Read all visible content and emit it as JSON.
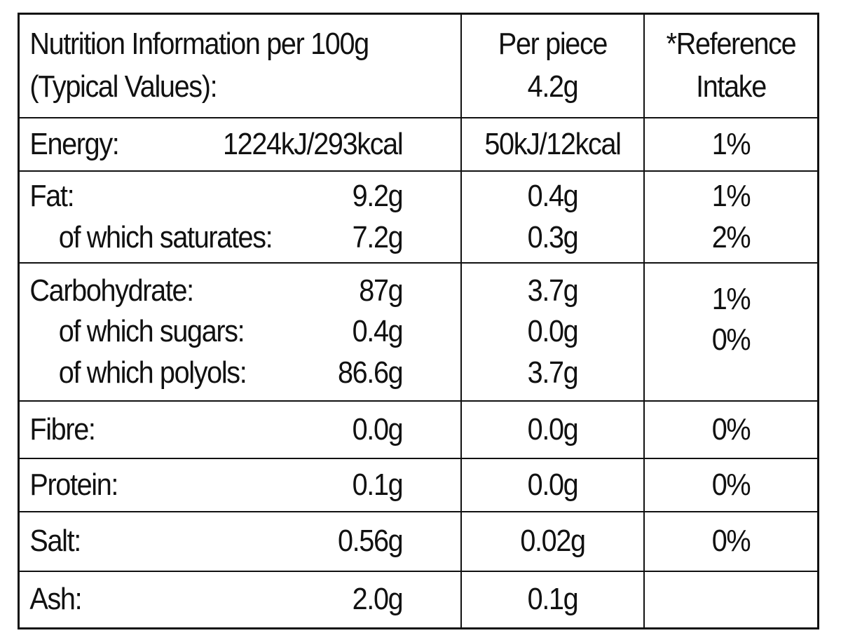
{
  "header": {
    "left_line1": "Nutrition Information per 100g",
    "left_line2": "(Typical Values):",
    "per_piece_line1": "Per piece",
    "per_piece_line2": "4.2g",
    "ri_line1": "*Reference",
    "ri_line2": "Intake"
  },
  "rows": {
    "energy": {
      "label": "Energy:",
      "per100": "1224kJ/293kcal",
      "piece": "50kJ/12kcal",
      "ri": "1%"
    },
    "fat": {
      "label": "Fat:",
      "per100": "9.2g",
      "piece": "0.4g",
      "ri": "1%"
    },
    "saturates": {
      "label": "of which saturates:",
      "per100": "7.2g",
      "piece": "0.3g",
      "ri": "2%"
    },
    "carbohydrate": {
      "label": "Carbohydrate:",
      "per100": "87g",
      "piece": "3.7g",
      "ri": "1%"
    },
    "sugars": {
      "label": "of which sugars:",
      "per100": "0.4g",
      "piece": "0.0g",
      "ri": "0%"
    },
    "polyols": {
      "label": "of which polyols:",
      "per100": "86.6g",
      "piece": "3.7g"
    },
    "fibre": {
      "label": "Fibre:",
      "per100": "0.0g",
      "piece": "0.0g",
      "ri": "0%"
    },
    "protein": {
      "label": "Protein:",
      "per100": "0.1g",
      "piece": "0.0g",
      "ri": "0%"
    },
    "salt": {
      "label": "Salt:",
      "per100": "0.56g",
      "piece": "0.02g",
      "ri": "0%"
    },
    "ash": {
      "label": "Ash:",
      "per100": "2.0g",
      "piece": "0.1g"
    }
  }
}
